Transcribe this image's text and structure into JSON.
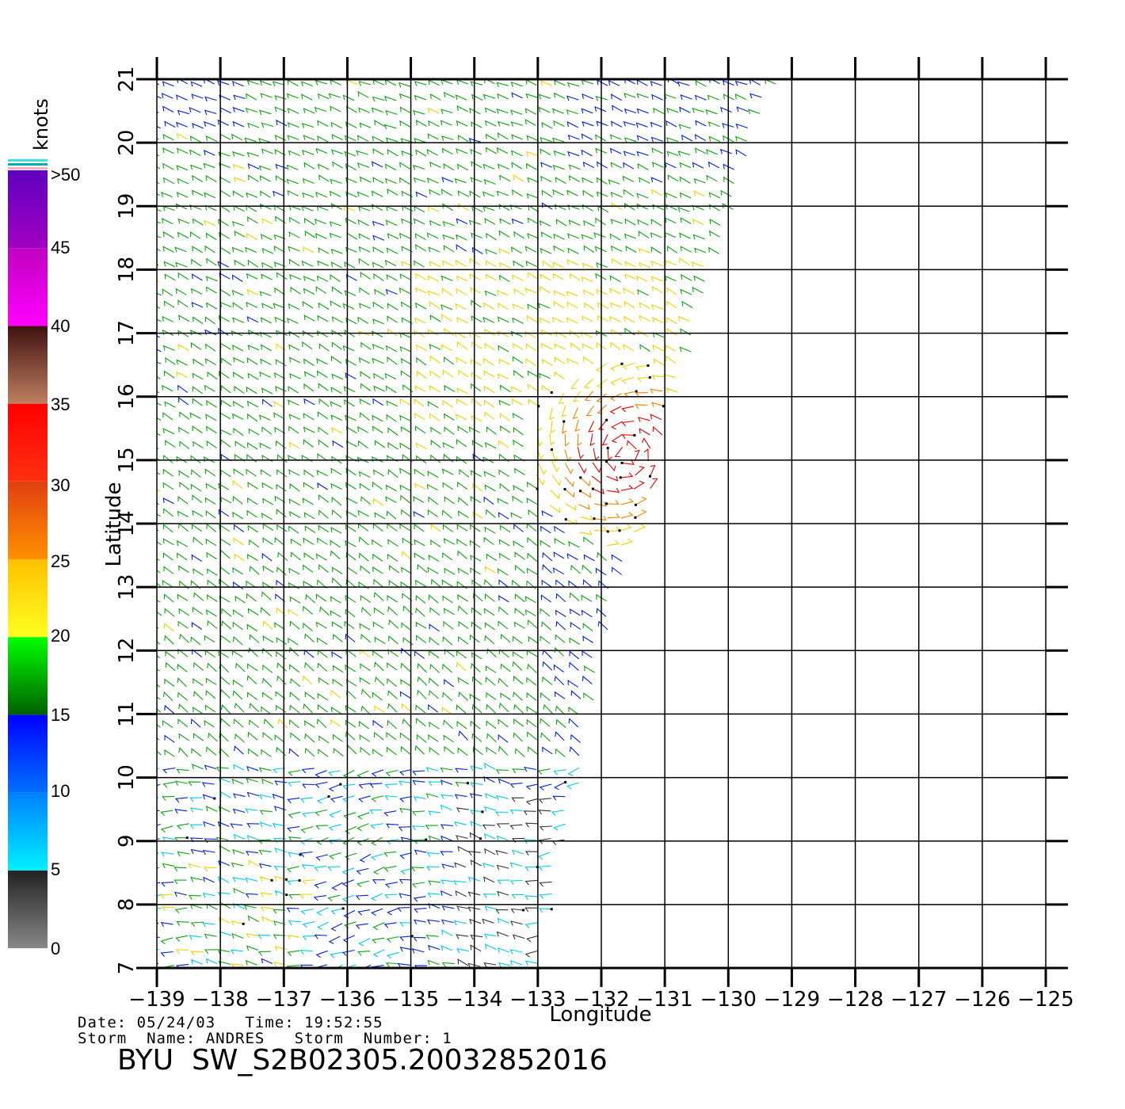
{
  "map": {
    "x_axis_label": "Longitude",
    "y_axis_label": "Latitude",
    "lon_ticks": [
      "−139",
      "−138",
      "−137",
      "−136",
      "−135",
      "−134",
      "−133",
      "−132",
      "−131",
      "−130",
      "−129",
      "−128",
      "−127",
      "−126",
      "−125"
    ],
    "lat_ticks": [
      "7",
      "8",
      "9",
      "10",
      "11",
      "12",
      "13",
      "14",
      "15",
      "16",
      "17",
      "18",
      "19",
      "20",
      "21"
    ],
    "lon_range": [
      -139,
      -125
    ],
    "lat_range": [
      7,
      21
    ],
    "grid": true,
    "swath_edge": [
      [
        7,
        -133
      ],
      [
        10,
        -132.3
      ],
      [
        12,
        -132
      ],
      [
        14,
        -131.4
      ],
      [
        16,
        -130.8
      ],
      [
        18,
        -130.2
      ],
      [
        20,
        -129.6
      ],
      [
        21,
        -129.2
      ]
    ],
    "storm_center": [
      15.1,
      -131.6
    ],
    "colors": {
      "calm": "#333333",
      "light": "#00c8e8",
      "blue": "#0020d0",
      "green": "#10a010",
      "yellow": "#f0d000",
      "orange": "#f08000",
      "red": "#e00000"
    }
  },
  "colorbar": {
    "title": "knots",
    "labels": [
      ">50",
      "45",
      "40",
      "35",
      "30",
      "25",
      "20",
      "15",
      "10",
      "5",
      "0"
    ],
    "segments": [
      {
        "min": 0,
        "max": 5,
        "from": "#888888",
        "to": "#222222"
      },
      {
        "min": 5,
        "max": 10,
        "from": "#00f0ff",
        "to": "#0080ff"
      },
      {
        "min": 10,
        "max": 15,
        "from": "#0070ff",
        "to": "#0000ff"
      },
      {
        "min": 15,
        "max": 20,
        "from": "#006000",
        "to": "#00ff00"
      },
      {
        "min": 20,
        "max": 25,
        "from": "#ffff20",
        "to": "#ffc000"
      },
      {
        "min": 25,
        "max": 30,
        "from": "#ff9000",
        "to": "#e04010"
      },
      {
        "min": 30,
        "max": 35,
        "from": "#ff3010",
        "to": "#ff0000"
      },
      {
        "min": 35,
        "max": 40,
        "from": "#c08060",
        "to": "#401010"
      },
      {
        "min": 40,
        "max": 45,
        "from": "#ff00ff",
        "to": "#c000c0"
      },
      {
        "min": 45,
        "max": 50,
        "from": "#a000c0",
        "to": "#6000c0"
      }
    ]
  },
  "meta": {
    "date_line": "Date: 05/24/03   Time: 19:52:55",
    "storm_line": "Storm  Name: ANDRES   Storm  Number: 1",
    "file_name": "BYU  SW_S2B02305.20032852016"
  }
}
